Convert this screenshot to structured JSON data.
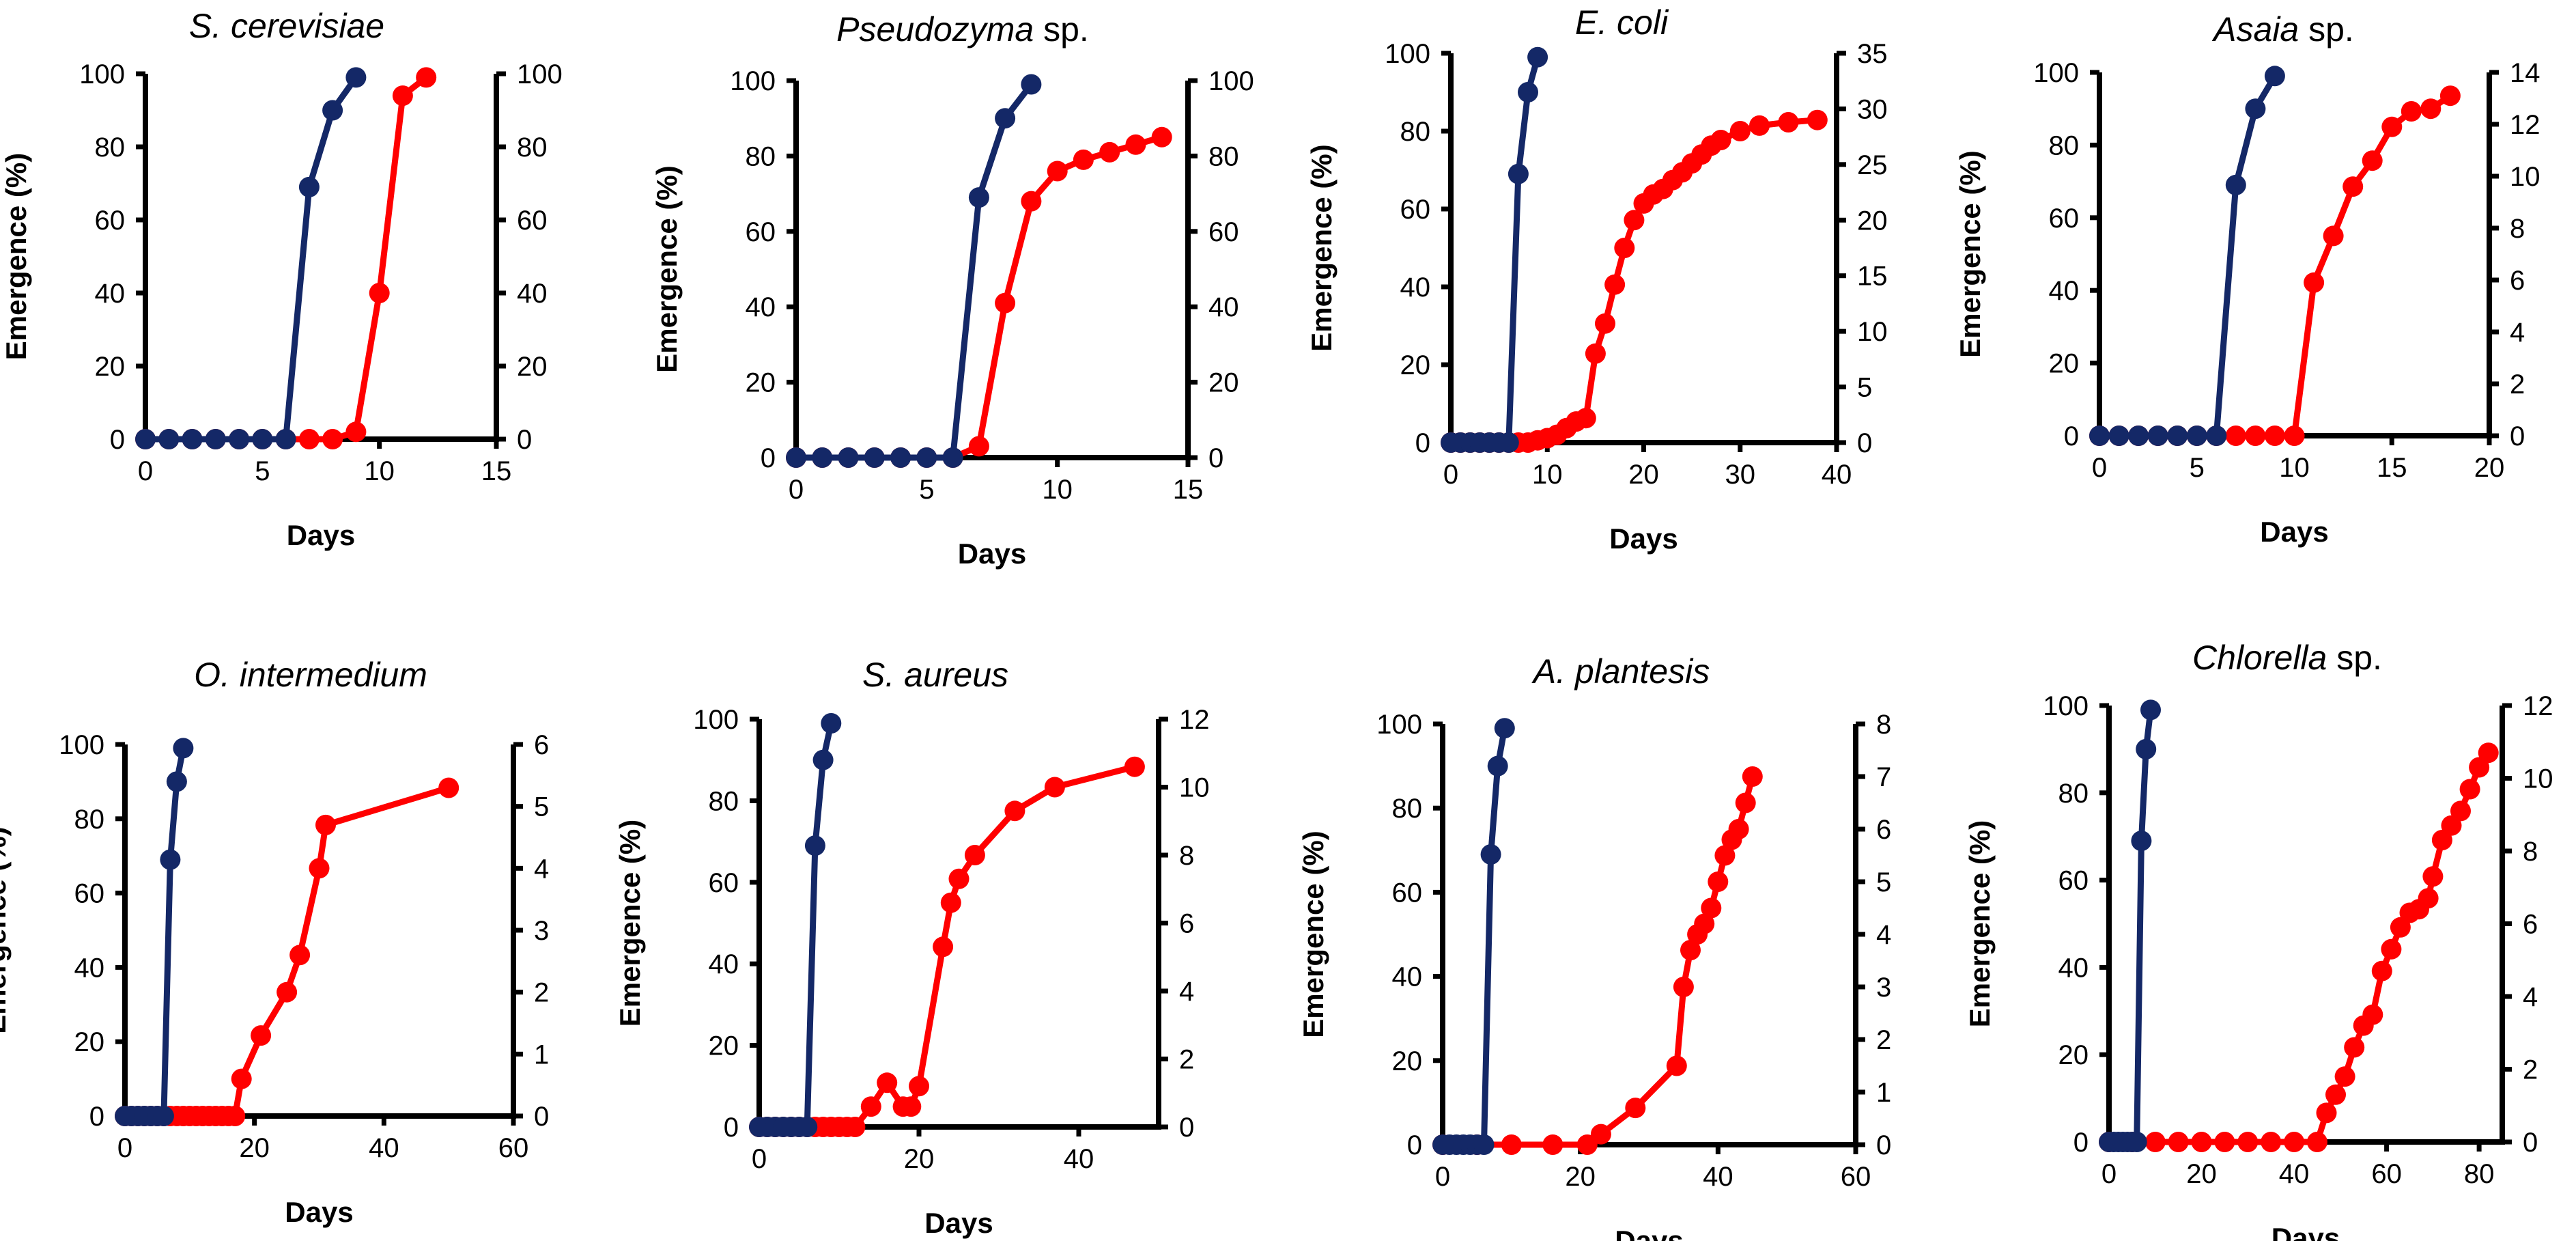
{
  "figure": {
    "colors": {
      "blue_series": "#142867",
      "red_series": "#ff0000",
      "axis": "#000000"
    },
    "shared_labels": {
      "ylabel": "Emergence  (%)",
      "xlabel": "Days"
    }
  },
  "chart_data": [
    {
      "type": "line",
      "title_italic": "S. cerevisiae",
      "title_rest": "",
      "xlabel": "Days",
      "ylabel": "Emergence  (%)",
      "xlim": [
        0,
        15
      ],
      "xticks": [
        0,
        5,
        10,
        15
      ],
      "ylim": [
        0,
        100
      ],
      "yticks": [
        0,
        20,
        40,
        60,
        80,
        100
      ],
      "y2lim": [
        0,
        100
      ],
      "y2ticks": [
        0,
        20,
        40,
        60,
        80,
        100
      ],
      "series": [
        {
          "name": "blue",
          "axis": "left",
          "color": "#142867",
          "x": [
            0,
            1,
            2,
            3,
            4,
            5,
            6,
            7,
            8,
            9
          ],
          "y": [
            0,
            0,
            0,
            0,
            0,
            0,
            0,
            69,
            90,
            99
          ]
        },
        {
          "name": "red",
          "axis": "right",
          "color": "#ff0000",
          "x": [
            0,
            1,
            2,
            3,
            4,
            5,
            6,
            7,
            8,
            9,
            10,
            11,
            12
          ],
          "y": [
            0,
            0,
            0,
            0,
            0,
            0,
            0,
            0,
            0,
            2,
            40,
            94,
            99
          ]
        }
      ]
    },
    {
      "type": "line",
      "title_italic": "Pseudozyma",
      "title_rest": " sp.",
      "xlabel": "Days",
      "ylabel": "Emergence  (%)",
      "xlim": [
        0,
        15
      ],
      "xticks": [
        0,
        5,
        10,
        15
      ],
      "ylim": [
        0,
        100
      ],
      "yticks": [
        0,
        20,
        40,
        60,
        80,
        100
      ],
      "y2lim": [
        0,
        100
      ],
      "y2ticks": [
        0,
        20,
        40,
        60,
        80,
        100
      ],
      "series": [
        {
          "name": "blue",
          "axis": "left",
          "color": "#142867",
          "x": [
            0,
            1,
            2,
            3,
            4,
            5,
            6,
            7,
            8,
            9
          ],
          "y": [
            0,
            0,
            0,
            0,
            0,
            0,
            0,
            69,
            90,
            99
          ]
        },
        {
          "name": "red",
          "axis": "right",
          "color": "#ff0000",
          "x": [
            0,
            1,
            2,
            3,
            4,
            5,
            6,
            7,
            8,
            9,
            10,
            11,
            12,
            13,
            14
          ],
          "y": [
            0,
            0,
            0,
            0,
            0,
            0,
            0,
            3,
            41,
            68,
            76,
            79,
            81,
            83,
            85
          ]
        }
      ]
    },
    {
      "type": "line",
      "title_italic": "E. coli",
      "title_rest": "",
      "xlabel": "Days",
      "ylabel": "Emergence  (%)",
      "xlim": [
        0,
        40
      ],
      "xticks": [
        0,
        10,
        20,
        30,
        40
      ],
      "ylim": [
        0,
        100
      ],
      "yticks": [
        0,
        20,
        40,
        60,
        80,
        100
      ],
      "y2lim": [
        0,
        35
      ],
      "y2ticks": [
        0,
        5,
        10,
        15,
        20,
        25,
        30,
        35
      ],
      "series": [
        {
          "name": "blue",
          "axis": "left",
          "color": "#142867",
          "x": [
            0,
            1,
            2,
            3,
            4,
            5,
            6,
            7,
            8,
            9
          ],
          "y": [
            0,
            0,
            0,
            0,
            0,
            0,
            0,
            69,
            90,
            99
          ]
        },
        {
          "name": "red",
          "axis": "right",
          "color": "#ff0000",
          "x": [
            0,
            1,
            2,
            3,
            4,
            5,
            6,
            7,
            8,
            9,
            10,
            11,
            12,
            13,
            14,
            15,
            16,
            17,
            18,
            19,
            20,
            21,
            22,
            23,
            24,
            25,
            26,
            27,
            28,
            30,
            32,
            35,
            38
          ],
          "y": [
            0,
            0,
            0,
            0,
            0,
            0,
            0,
            0,
            0,
            0.2,
            0.4,
            0.7,
            1.3,
            1.9,
            2.2,
            8,
            10.7,
            14.2,
            17.5,
            20,
            21.5,
            22.3,
            22.8,
            23.6,
            24.3,
            25.1,
            25.9,
            26.7,
            27.2,
            28,
            28.5,
            28.8,
            29
          ]
        }
      ]
    },
    {
      "type": "line",
      "title_italic": "Asaia",
      "title_rest": " sp.",
      "xlabel": "Days",
      "ylabel": "Emergence  (%)",
      "xlim": [
        0,
        20
      ],
      "xticks": [
        0,
        5,
        10,
        15,
        20
      ],
      "ylim": [
        0,
        100
      ],
      "yticks": [
        0,
        20,
        40,
        60,
        80,
        100
      ],
      "y2lim": [
        0,
        14
      ],
      "y2ticks": [
        0,
        2,
        4,
        6,
        8,
        10,
        12,
        14
      ],
      "series": [
        {
          "name": "blue",
          "axis": "left",
          "color": "#142867",
          "x": [
            0,
            1,
            2,
            3,
            4,
            5,
            6,
            7,
            8,
            9
          ],
          "y": [
            0,
            0,
            0,
            0,
            0,
            0,
            0,
            69,
            90,
            99
          ]
        },
        {
          "name": "red",
          "axis": "right",
          "color": "#ff0000",
          "x": [
            0,
            1,
            2,
            3,
            4,
            5,
            6,
            7,
            8,
            9,
            10,
            11,
            12,
            13,
            14,
            15,
            16,
            17,
            18
          ],
          "y": [
            0,
            0,
            0,
            0,
            0,
            0,
            0,
            0,
            0,
            0,
            0,
            5.9,
            7.7,
            9.6,
            10.6,
            11.9,
            12.5,
            12.6,
            13.1
          ]
        }
      ]
    },
    {
      "type": "line",
      "title_italic": "O. intermedium",
      "title_rest": "",
      "xlabel": "Days",
      "ylabel": "Emergence  (%)",
      "xlim": [
        0,
        60
      ],
      "xticks": [
        0,
        20,
        40,
        60
      ],
      "ylim": [
        0,
        100
      ],
      "yticks": [
        0,
        20,
        40,
        60,
        80,
        100
      ],
      "y2lim": [
        0,
        6
      ],
      "y2ticks": [
        0,
        1,
        2,
        3,
        4,
        5,
        6
      ],
      "series": [
        {
          "name": "blue",
          "axis": "left",
          "color": "#142867",
          "x": [
            0,
            1,
            2,
            3,
            4,
            5,
            6,
            7,
            8,
            9
          ],
          "y": [
            0,
            0,
            0,
            0,
            0,
            0,
            0,
            69,
            90,
            99
          ]
        },
        {
          "name": "red",
          "axis": "right",
          "color": "#ff0000",
          "x": [
            0,
            1,
            2,
            3,
            4,
            5,
            6,
            7,
            8,
            9,
            10,
            11,
            12,
            13,
            14,
            15,
            16,
            17,
            18,
            21,
            25,
            27,
            30,
            31,
            50
          ],
          "y": [
            0,
            0,
            0,
            0,
            0,
            0,
            0,
            0,
            0,
            0,
            0,
            0,
            0,
            0,
            0,
            0,
            0,
            0,
            0.6,
            1.3,
            2,
            2.6,
            4,
            4.7,
            5.3
          ]
        }
      ]
    },
    {
      "type": "line",
      "title_italic": "S. aureus",
      "title_rest": "",
      "xlabel": "Days",
      "ylabel": "Emergence  (%)",
      "xlim": [
        0,
        50
      ],
      "xticks": [
        0,
        20,
        40
      ],
      "ylim": [
        0,
        100
      ],
      "yticks": [
        0,
        20,
        40,
        60,
        80,
        100
      ],
      "y2lim": [
        0,
        12
      ],
      "y2ticks": [
        0,
        2,
        4,
        6,
        8,
        10,
        12
      ],
      "series": [
        {
          "name": "blue",
          "axis": "left",
          "color": "#142867",
          "x": [
            0,
            1,
            2,
            3,
            4,
            5,
            6,
            7,
            8,
            9
          ],
          "y": [
            0,
            0,
            0,
            0,
            0,
            0,
            0,
            69,
            90,
            99
          ]
        },
        {
          "name": "red",
          "axis": "right",
          "color": "#ff0000",
          "x": [
            0,
            1,
            2,
            3,
            4,
            5,
            6,
            7,
            8,
            9,
            10,
            11,
            12,
            14,
            16,
            18,
            19,
            20,
            23,
            24,
            25,
            27,
            32,
            37,
            47
          ],
          "y": [
            0,
            0,
            0,
            0,
            0,
            0,
            0,
            0,
            0,
            0,
            0,
            0,
            0,
            0.6,
            1.3,
            0.6,
            0.6,
            1.2,
            5.3,
            6.6,
            7.3,
            8,
            9.3,
            10,
            10.6
          ]
        }
      ]
    },
    {
      "type": "line",
      "title_italic": "A. plantesis",
      "title_rest": "",
      "xlabel": "Days",
      "ylabel": "Emergence  (%)",
      "xlim": [
        0,
        60
      ],
      "xticks": [
        0,
        20,
        40,
        60
      ],
      "ylim": [
        0,
        100
      ],
      "yticks": [
        0,
        20,
        40,
        60,
        80,
        100
      ],
      "y2lim": [
        0,
        8
      ],
      "y2ticks": [
        0,
        1,
        2,
        3,
        4,
        5,
        6,
        7,
        8
      ],
      "series": [
        {
          "name": "blue",
          "axis": "left",
          "color": "#142867",
          "x": [
            0,
            1,
            2,
            3,
            4,
            5,
            6,
            7,
            8,
            9
          ],
          "y": [
            0,
            0,
            0,
            0,
            0,
            0,
            0,
            69,
            90,
            99
          ]
        },
        {
          "name": "red",
          "axis": "right",
          "color": "#ff0000",
          "x": [
            0,
            5,
            10,
            16,
            21,
            23,
            28,
            34,
            35,
            36,
            37,
            38,
            39,
            40,
            41,
            42,
            43,
            44,
            45
          ],
          "y": [
            0,
            0,
            0,
            0,
            0,
            0.2,
            0.7,
            1.5,
            3,
            3.7,
            4,
            4.2,
            4.5,
            5,
            5.5,
            5.8,
            6,
            6.5,
            7
          ]
        }
      ]
    },
    {
      "type": "line",
      "title_italic": "Chlorella",
      "title_rest": " sp.",
      "xlabel": "Days",
      "ylabel": "Emergence  (%)",
      "xlim": [
        0,
        85
      ],
      "xticks": [
        0,
        20,
        40,
        60,
        80
      ],
      "ylim": [
        0,
        100
      ],
      "yticks": [
        0,
        20,
        40,
        60,
        80,
        100
      ],
      "y2lim": [
        0,
        12
      ],
      "y2ticks": [
        0,
        2,
        4,
        6,
        8,
        10,
        12
      ],
      "series": [
        {
          "name": "blue",
          "axis": "left",
          "color": "#142867",
          "x": [
            0,
            1,
            2,
            3,
            4,
            5,
            6,
            7,
            8,
            9
          ],
          "y": [
            0,
            0,
            0,
            0,
            0,
            0,
            0,
            69,
            90,
            99
          ]
        },
        {
          "name": "red",
          "axis": "right",
          "color": "#ff0000",
          "x": [
            0,
            5,
            10,
            15,
            20,
            25,
            30,
            35,
            40,
            45,
            47,
            49,
            51,
            53,
            55,
            57,
            59,
            61,
            63,
            65,
            67,
            69,
            70,
            72,
            74,
            76,
            78,
            80,
            82
          ],
          "y": [
            0,
            0,
            0,
            0,
            0,
            0,
            0,
            0,
            0,
            0,
            0.8,
            1.3,
            1.8,
            2.6,
            3.2,
            3.5,
            4.7,
            5.3,
            5.9,
            6.3,
            6.4,
            6.7,
            7.3,
            8.3,
            8.7,
            9.1,
            9.7,
            10.3,
            10.7
          ]
        }
      ]
    }
  ]
}
